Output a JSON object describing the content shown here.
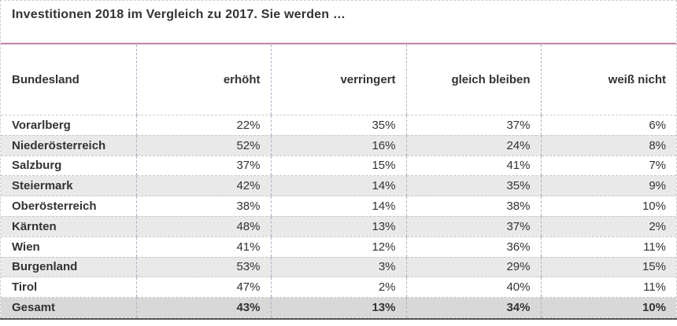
{
  "title": "Investitionen 2018 im Vergleich zu 2017. Sie werden …",
  "table": {
    "columns": [
      "Bundesland",
      "erhöht",
      "verringert",
      "gleich bleiben",
      "weiß nicht"
    ],
    "rows": [
      {
        "label": "Vorarlberg",
        "values": [
          "22%",
          "35%",
          "37%",
          "6%"
        ],
        "is_total": false
      },
      {
        "label": "Niederösterreich",
        "values": [
          "52%",
          "16%",
          "24%",
          "8%"
        ],
        "is_total": false
      },
      {
        "label": "Salzburg",
        "values": [
          "37%",
          "15%",
          "41%",
          "7%"
        ],
        "is_total": false
      },
      {
        "label": "Steiermark",
        "values": [
          "42%",
          "14%",
          "35%",
          "9%"
        ],
        "is_total": false
      },
      {
        "label": "Oberösterreich",
        "values": [
          "38%",
          "14%",
          "38%",
          "10%"
        ],
        "is_total": false
      },
      {
        "label": "Kärnten",
        "values": [
          "48%",
          "13%",
          "37%",
          "2%"
        ],
        "is_total": false
      },
      {
        "label": "Wien",
        "values": [
          "41%",
          "12%",
          "36%",
          "11%"
        ],
        "is_total": false
      },
      {
        "label": "Burgenland",
        "values": [
          "53%",
          "3%",
          "29%",
          "15%"
        ],
        "is_total": false
      },
      {
        "label": "Tirol",
        "values": [
          "47%",
          "2%",
          "40%",
          "11%"
        ],
        "is_total": false
      },
      {
        "label": "Gesamt",
        "values": [
          "43%",
          "13%",
          "34%",
          "10%"
        ],
        "is_total": true
      }
    ]
  },
  "colors": {
    "accent_rule": "#b16d98",
    "accent_rule_light": "#e6c4d8",
    "alt_row_bg": "#e9e9e9",
    "total_row_bg": "#d8d8d8",
    "text": "#333333",
    "dashed_border_vertical": "#a9b1c6",
    "dashed_border_horizontal": "#c8c8c8",
    "bottom_border": "#555555"
  },
  "chart_data": {
    "type": "table",
    "title": "Investitionen 2018 im Vergleich zu 2017. Sie werden …",
    "unit": "%",
    "categories": [
      "Vorarlberg",
      "Niederösterreich",
      "Salzburg",
      "Steiermark",
      "Oberösterreich",
      "Kärnten",
      "Wien",
      "Burgenland",
      "Tirol",
      "Gesamt"
    ],
    "series": [
      {
        "name": "erhöht",
        "values": [
          22,
          52,
          37,
          42,
          38,
          48,
          41,
          53,
          47,
          43
        ]
      },
      {
        "name": "verringert",
        "values": [
          35,
          16,
          15,
          14,
          14,
          13,
          12,
          3,
          2,
          13
        ]
      },
      {
        "name": "gleich bleiben",
        "values": [
          37,
          24,
          41,
          35,
          38,
          37,
          36,
          29,
          40,
          34
        ]
      },
      {
        "name": "weiß nicht",
        "values": [
          6,
          8,
          7,
          9,
          10,
          2,
          11,
          15,
          11,
          10
        ]
      }
    ]
  }
}
